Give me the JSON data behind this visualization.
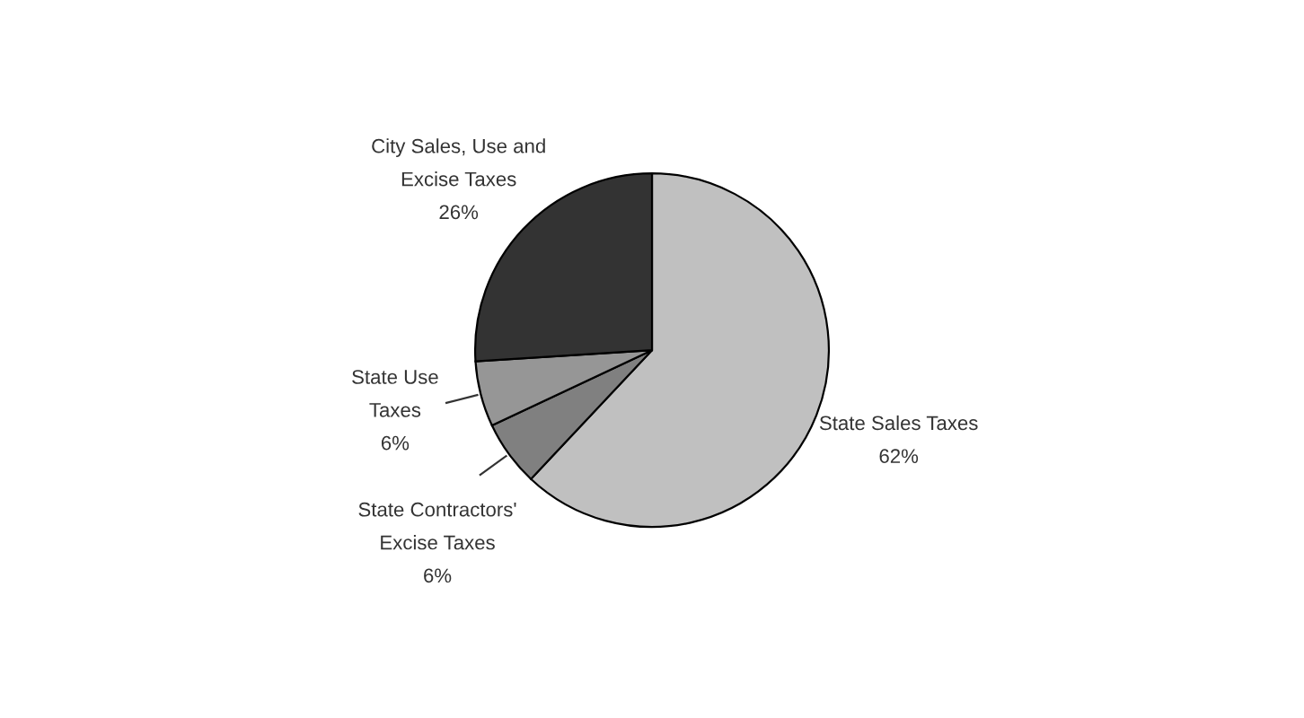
{
  "chart_data": {
    "type": "pie",
    "categories": [
      "State Sales Taxes",
      "State Contractors'\nExcise Taxes",
      "State Use\nTaxes",
      "City Sales, Use and\nExcise Taxes"
    ],
    "values": [
      62,
      6,
      6,
      26
    ],
    "value_labels": [
      "62%",
      "6%",
      "6%",
      "26%"
    ],
    "colors": [
      "#c0c0c0",
      "#808080",
      "#969696",
      "#333333"
    ]
  }
}
